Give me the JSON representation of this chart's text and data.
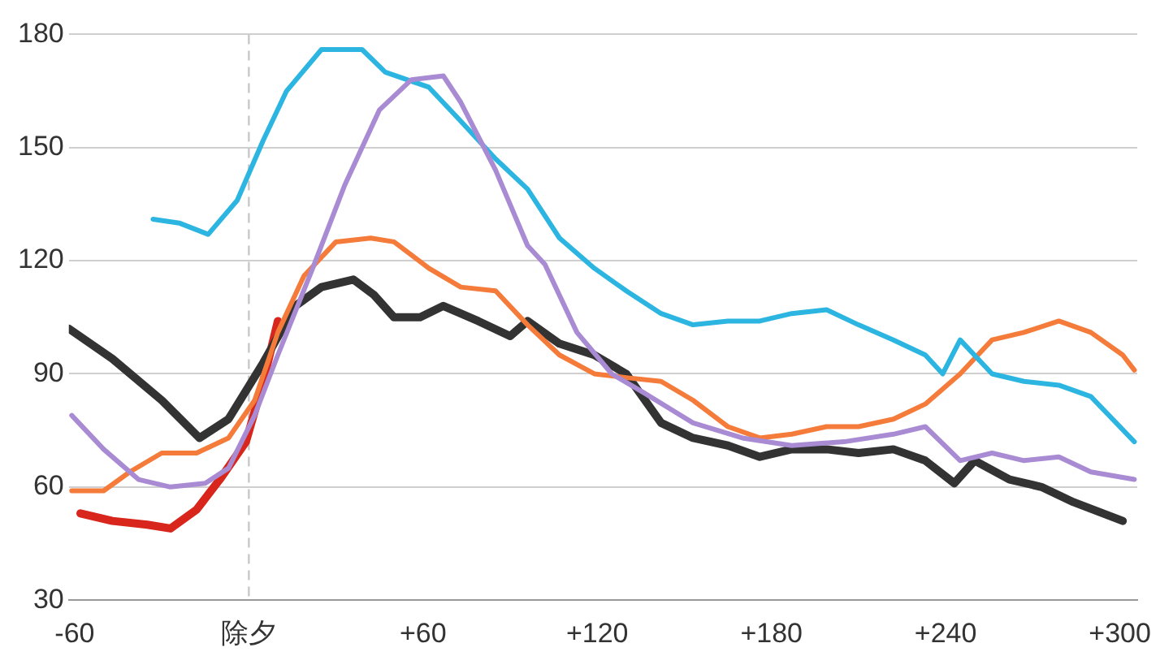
{
  "chart_data": {
    "type": "line",
    "xlim": [
      -62,
      306
    ],
    "ylim": [
      30,
      180
    ],
    "xticks": [
      -60,
      {
        "value": 0,
        "label": "除夕"
      },
      {
        "value": 60,
        "label": "+60"
      },
      {
        "value": 120,
        "label": "+120"
      },
      {
        "value": 180,
        "label": "+180"
      },
      {
        "value": 240,
        "label": "+240"
      },
      {
        "value": 300,
        "label": "+300"
      }
    ],
    "yticks": [
      30,
      60,
      90,
      120,
      150,
      180
    ],
    "grid": "y",
    "legend": false,
    "marker": "none",
    "line_style": "solid",
    "ref_lines": [
      {
        "axis": "x",
        "value": 0,
        "color": "#c8c8c8",
        "line_style": "dashed"
      }
    ],
    "series": [
      {
        "color": "#a98bd4",
        "x": [
          -61,
          -50,
          -38,
          -27,
          -15,
          -7,
          2,
          10,
          22,
          33,
          45,
          56,
          67,
          73,
          85,
          96,
          102,
          113,
          125,
          136,
          153,
          170,
          187,
          205,
          222,
          233,
          245,
          256,
          267,
          279,
          290,
          305
        ],
        "values": [
          79,
          70,
          62,
          60,
          61,
          65,
          79,
          95,
          118,
          140,
          160,
          168,
          169,
          162,
          144,
          124,
          119,
          101,
          90,
          85,
          77,
          73,
          71,
          72,
          74,
          76,
          67,
          69,
          67,
          68,
          64,
          62
        ]
      },
      {
        "color": "#2bb5e0",
        "x": [
          -33,
          -24,
          -14,
          -4,
          5,
          13,
          25,
          39,
          47,
          62,
          73,
          85,
          96,
          107,
          119,
          130,
          142,
          153,
          165,
          176,
          187,
          199,
          210,
          222,
          233,
          239,
          245,
          256,
          267,
          279,
          290,
          305
        ],
        "values": [
          131,
          130,
          127,
          136,
          152,
          165,
          176,
          176,
          170,
          166,
          157,
          147,
          139,
          126,
          118,
          112,
          106,
          103,
          104,
          104,
          106,
          107,
          103,
          99,
          95,
          90,
          99,
          90,
          88,
          87,
          84,
          72
        ]
      },
      {
        "color": "#f47b3a",
        "x": [
          -61,
          -50,
          -41,
          -30,
          -18,
          -7,
          2,
          10,
          19,
          30,
          42,
          50,
          62,
          73,
          85,
          96,
          107,
          119,
          130,
          142,
          153,
          165,
          176,
          187,
          199,
          210,
          222,
          233,
          245,
          256,
          267,
          279,
          290,
          301,
          305
        ],
        "values": [
          59,
          59,
          64,
          69,
          69,
          73,
          83,
          101,
          116,
          125,
          126,
          125,
          118,
          113,
          112,
          103,
          95,
          90,
          89,
          88,
          83,
          76,
          73,
          74,
          76,
          76,
          78,
          82,
          90,
          99,
          101,
          104,
          101,
          95,
          91
        ]
      },
      {
        "color": "#333333",
        "x": [
          -62,
          -47,
          -30,
          -17,
          -7,
          5,
          16,
          25,
          36,
          43,
          50,
          59,
          67,
          79,
          90,
          96,
          107,
          119,
          130,
          142,
          153,
          165,
          176,
          187,
          199,
          210,
          222,
          233,
          243,
          250,
          262,
          273,
          284,
          301
        ],
        "values": [
          102,
          94,
          83,
          73,
          78,
          93,
          108,
          113,
          115,
          111,
          105,
          105,
          108,
          104,
          100,
          104,
          98,
          95,
          90,
          77,
          73,
          71,
          68,
          70,
          70,
          69,
          70,
          67,
          61,
          67,
          62,
          60,
          56,
          51
        ]
      },
      {
        "color": "#d9261c",
        "x": [
          -58,
          -47,
          -35,
          -27,
          -18,
          -10,
          -1,
          5,
          10
        ],
        "values": [
          53,
          51,
          50,
          49,
          54,
          62,
          72,
          88,
          104
        ]
      }
    ]
  }
}
